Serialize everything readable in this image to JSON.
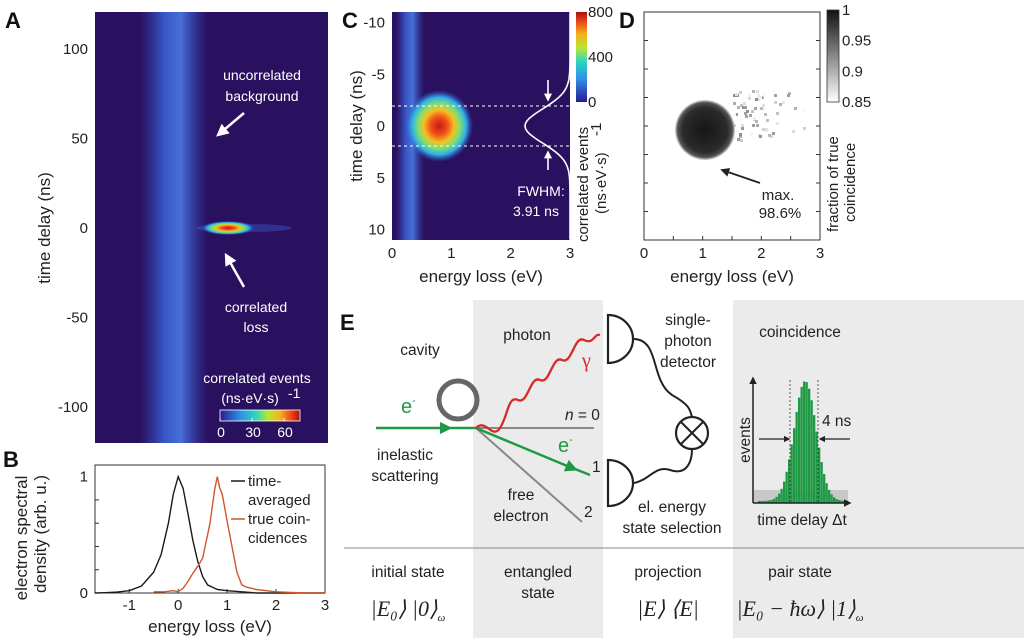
{
  "panels": {
    "A": "A",
    "B": "B",
    "C": "C",
    "D": "D",
    "E": "E"
  },
  "chart_data": [
    {
      "id": "A",
      "type": "heatmap",
      "ylabel": "time delay (ns)",
      "xlabel": "",
      "ylim": [
        -120,
        120
      ],
      "yticks": [
        100,
        50,
        0,
        -50,
        -100
      ],
      "colorbar": {
        "label_line1": "correlated events",
        "label_line2": "(ns·eV·s)",
        "label_exp": "-1",
        "range": [
          0,
          75
        ],
        "ticks": [
          0,
          30,
          60
        ],
        "colormap": "jet"
      },
      "annotations": [
        {
          "line1": "uncorrelated",
          "line2": "background"
        },
        {
          "line1": "correlated",
          "line2": "loss"
        }
      ],
      "background_color": "#2a1160"
    },
    {
      "id": "B",
      "type": "line",
      "xlabel": "energy loss (eV)",
      "ylabel_line1": "electron spectral",
      "ylabel_line2": "density (arb. u.)",
      "xlim": [
        -1.7,
        3
      ],
      "ylim": [
        0,
        1.1
      ],
      "xticks": [
        -1,
        0,
        1,
        2,
        3
      ],
      "yticks": [
        0,
        1
      ],
      "legend": "top-right",
      "series": [
        {
          "name_line1": "time-",
          "name_line2": "averaged",
          "color": "#1a1a1a",
          "x": [
            -1.7,
            -1.5,
            -1.25,
            -1,
            -0.75,
            -0.5,
            -0.35,
            -0.2,
            -0.1,
            0,
            0.1,
            0.2,
            0.3,
            0.4,
            0.5,
            0.6,
            0.8,
            1,
            1.3,
            1.6,
            3
          ],
          "y": [
            0,
            0.003,
            0.008,
            0.02,
            0.06,
            0.18,
            0.33,
            0.6,
            0.85,
            1,
            0.9,
            0.68,
            0.45,
            0.27,
            0.14,
            0.07,
            0.03,
            0.02,
            0.01,
            0,
            0
          ]
        },
        {
          "name_line1": "true coin-",
          "name_line2": "cidences",
          "color": "#d2562a",
          "x": [
            -0.5,
            -0.3,
            -0.1,
            0,
            0.1,
            0.2,
            0.3,
            0.4,
            0.5,
            0.6,
            0.65,
            0.7,
            0.75,
            0.8,
            0.85,
            0.9,
            1,
            1.1,
            1.2,
            1.3,
            1.4,
            1.6,
            1.8,
            2,
            2.3,
            2.6,
            3
          ],
          "y": [
            0.01,
            0.01,
            0.02,
            0.01,
            0.04,
            0.1,
            0.17,
            0.23,
            0.3,
            0.5,
            0.6,
            0.75,
            0.9,
            1,
            0.9,
            0.85,
            0.62,
            0.4,
            0.18,
            0.07,
            0.05,
            0.03,
            0.02,
            0.01,
            0.005,
            0,
            0
          ]
        }
      ]
    },
    {
      "id": "C",
      "type": "heatmap",
      "xlabel": "energy loss (eV)",
      "ylabel": "time delay (ns)",
      "xlim": [
        0,
        3
      ],
      "ylim": [
        -11,
        11
      ],
      "xticks": [
        0,
        1,
        2,
        3
      ],
      "yticks": [
        -10,
        -5,
        0,
        5,
        10
      ],
      "colorbar": {
        "label_line1": "correlated events",
        "label_line2": "(ns·eV·s)",
        "label_exp": "-1",
        "range": [
          0,
          800
        ],
        "ticks": [
          0,
          400,
          800
        ],
        "colormap": "jet"
      },
      "peak": {
        "energy_loss_eV": 0.8,
        "time_delay_ns": 0
      },
      "fwhm_markers_ns": [
        -1.955,
        1.955
      ],
      "annotation": {
        "line1": "FWHM:",
        "line2": "3.91 ns"
      },
      "background_color": "#2a1160"
    },
    {
      "id": "D",
      "type": "heatmap",
      "xlabel": "energy loss (eV)",
      "xlim": [
        0,
        3
      ],
      "xticks": [
        0,
        1,
        2,
        3
      ],
      "colorbar": {
        "label_line1": "fraction of true",
        "label_line2": "coincidence",
        "range": [
          0.85,
          1
        ],
        "ticks": [
          "1",
          "0.95",
          "0.9",
          "0.85"
        ],
        "colormap": "gray-reversed"
      },
      "annotation": {
        "line1": "max.",
        "line2": "98.6%"
      }
    }
  ],
  "diagram_E": {
    "cavity": "cavity",
    "electron_in": "e",
    "electron_out": "e",
    "electron_sup": "-",
    "inelastic_line1": "inelastic",
    "inelastic_line2": "scattering",
    "photon": "photon",
    "gamma": "γ",
    "n0": "n",
    "n0_rest": " = 0",
    "n1": "1",
    "n2": "2",
    "free_line1": "free",
    "free_line2": "electron",
    "detector_line1": "single-",
    "detector_line2": "photon",
    "detector_line3": "detector",
    "selection_line1": "el. energy",
    "selection_line2": "state selection",
    "coincidence": "coincidence",
    "events": "events",
    "width_label": "4 ns",
    "time_axis": "time delay Δt",
    "stages": [
      {
        "label_line1": "initial state",
        "label_line2": "",
        "formula": "|E₀⟩ |0⟩",
        "sub": "ω"
      },
      {
        "label_line1": "entangled",
        "label_line2": "state",
        "formula": "",
        "sub": ""
      },
      {
        "label_line1": "projection",
        "label_line2": "",
        "formula": "|E⟩ ⟨E|",
        "sub": ""
      },
      {
        "label_line1": "pair state",
        "label_line2": "",
        "formula": "|E₀ − ħω⟩ |1⟩",
        "sub": "ω"
      }
    ],
    "colors": {
      "electron": "#1e9a45",
      "photon": "#d42a2a",
      "shade": "#ebebeb",
      "histogram": "#1e9a45"
    }
  }
}
